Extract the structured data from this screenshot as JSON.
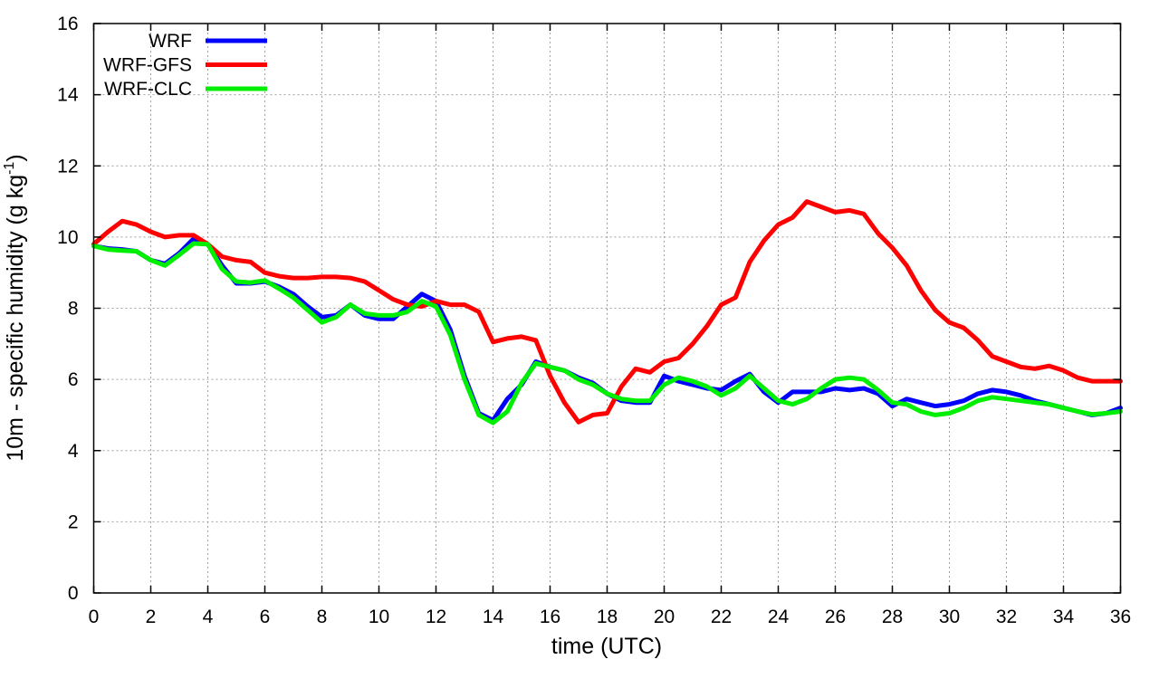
{
  "chart_data": {
    "type": "line",
    "xlabel": "time (UTC)",
    "ylabel": {
      "prefix": "10m - specific humidity (g kg",
      "superscript": "-1",
      "suffix": ")"
    },
    "xlim": [
      0,
      36
    ],
    "ylim": [
      0,
      16
    ],
    "xticks": [
      0,
      2,
      4,
      6,
      8,
      10,
      12,
      14,
      16,
      18,
      20,
      22,
      24,
      26,
      28,
      30,
      32,
      34,
      36
    ],
    "yticks": [
      0,
      2,
      4,
      6,
      8,
      10,
      12,
      14,
      16
    ],
    "grid": true,
    "legend_position": "top-left",
    "series": [
      {
        "name": "WRF",
        "color": "#0000ff",
        "x": [
          0,
          0.5,
          1,
          1.5,
          2,
          2.5,
          3,
          3.5,
          4,
          4.5,
          5,
          5.5,
          6,
          6.5,
          7,
          7.5,
          8,
          8.5,
          9,
          9.5,
          10,
          10.5,
          11,
          11.5,
          12,
          12.5,
          13,
          13.5,
          14,
          14.5,
          15,
          15.5,
          16,
          16.5,
          17,
          17.5,
          18,
          18.5,
          19,
          19.5,
          20,
          20.5,
          21,
          21.5,
          22,
          22.5,
          23,
          23.5,
          24,
          24.5,
          25,
          25.5,
          26,
          26.5,
          27,
          27.5,
          28,
          28.5,
          29,
          29.5,
          30,
          30.5,
          31,
          31.5,
          32,
          32.5,
          33,
          33.5,
          34,
          34.5,
          35,
          35.5,
          36
        ],
        "y": [
          9.75,
          9.68,
          9.65,
          9.6,
          9.35,
          9.25,
          9.55,
          9.95,
          9.8,
          9.2,
          8.7,
          8.7,
          8.75,
          8.6,
          8.4,
          8.05,
          7.75,
          7.8,
          8.1,
          7.8,
          7.7,
          7.7,
          8.05,
          8.4,
          8.2,
          7.4,
          6.1,
          5.05,
          4.85,
          5.45,
          5.85,
          6.5,
          6.35,
          6.25,
          6.05,
          5.9,
          5.6,
          5.4,
          5.35,
          5.35,
          6.1,
          5.95,
          5.85,
          5.75,
          5.7,
          5.95,
          6.15,
          5.65,
          5.35,
          5.65,
          5.65,
          5.65,
          5.75,
          5.7,
          5.75,
          5.6,
          5.25,
          5.45,
          5.35,
          5.25,
          5.3,
          5.4,
          5.6,
          5.7,
          5.65,
          5.55,
          5.4,
          5.3,
          5.2,
          5.1,
          5.0,
          5.05,
          5.2
        ]
      },
      {
        "name": "WRF-GFS",
        "color": "#ff0000",
        "x": [
          0,
          0.5,
          1,
          1.5,
          2,
          2.5,
          3,
          3.5,
          4,
          4.5,
          5,
          5.5,
          6,
          6.5,
          7,
          7.5,
          8,
          8.5,
          9,
          9.5,
          10,
          10.5,
          11,
          11.5,
          12,
          12.5,
          13,
          13.5,
          14,
          14.5,
          15,
          15.5,
          16,
          16.5,
          17,
          17.5,
          18,
          18.5,
          19,
          19.5,
          20,
          20.5,
          21,
          21.5,
          22,
          22.5,
          23,
          23.5,
          24,
          24.5,
          25,
          25.5,
          26,
          26.5,
          27,
          27.5,
          28,
          28.5,
          29,
          29.5,
          30,
          30.5,
          31,
          31.5,
          32,
          32.5,
          33,
          33.5,
          34,
          34.5,
          35,
          35.5,
          36
        ],
        "y": [
          9.8,
          10.15,
          10.45,
          10.35,
          10.15,
          10.0,
          10.05,
          10.05,
          9.8,
          9.45,
          9.35,
          9.3,
          9.0,
          8.9,
          8.85,
          8.85,
          8.88,
          8.88,
          8.85,
          8.75,
          8.5,
          8.25,
          8.1,
          8.05,
          8.2,
          8.1,
          8.1,
          7.9,
          7.05,
          7.15,
          7.2,
          7.1,
          6.1,
          5.35,
          4.8,
          5.0,
          5.05,
          5.8,
          6.3,
          6.2,
          6.5,
          6.6,
          7.0,
          7.5,
          8.1,
          8.3,
          9.3,
          9.9,
          10.35,
          10.55,
          11.0,
          10.85,
          10.7,
          10.75,
          10.65,
          10.1,
          9.7,
          9.2,
          8.5,
          7.95,
          7.6,
          7.45,
          7.1,
          6.65,
          6.5,
          6.35,
          6.3,
          6.38,
          6.25,
          6.05,
          5.95,
          5.95,
          5.95
        ]
      },
      {
        "name": "WRF-CLC",
        "color": "#00ee00",
        "x": [
          0,
          0.5,
          1,
          1.5,
          2,
          2.5,
          3,
          3.5,
          4,
          4.5,
          5,
          5.5,
          6,
          6.5,
          7,
          7.5,
          8,
          8.5,
          9,
          9.5,
          10,
          10.5,
          11,
          11.5,
          12,
          12.5,
          13,
          13.5,
          14,
          14.5,
          15,
          15.5,
          16,
          16.5,
          17,
          17.5,
          18,
          18.5,
          19,
          19.5,
          20,
          20.5,
          21,
          21.5,
          22,
          22.5,
          23,
          23.5,
          24,
          24.5,
          25,
          25.5,
          26,
          26.5,
          27,
          27.5,
          28,
          28.5,
          29,
          29.5,
          30,
          30.5,
          31,
          31.5,
          32,
          32.5,
          33,
          33.5,
          34,
          34.5,
          35,
          35.5,
          36
        ],
        "y": [
          9.75,
          9.65,
          9.62,
          9.6,
          9.35,
          9.2,
          9.5,
          9.82,
          9.8,
          9.1,
          8.75,
          8.72,
          8.78,
          8.55,
          8.3,
          7.95,
          7.6,
          7.75,
          8.1,
          7.85,
          7.8,
          7.8,
          7.9,
          8.2,
          8.05,
          7.25,
          6.0,
          5.0,
          4.78,
          5.1,
          5.9,
          6.45,
          6.35,
          6.25,
          6.0,
          5.85,
          5.6,
          5.45,
          5.4,
          5.4,
          5.85,
          6.05,
          5.95,
          5.8,
          5.55,
          5.75,
          6.1,
          5.75,
          5.4,
          5.3,
          5.45,
          5.75,
          6.0,
          6.05,
          6.0,
          5.7,
          5.35,
          5.3,
          5.1,
          5.0,
          5.05,
          5.2,
          5.4,
          5.5,
          5.45,
          5.4,
          5.35,
          5.3,
          5.2,
          5.1,
          5.02,
          5.05,
          5.1
        ]
      }
    ]
  }
}
